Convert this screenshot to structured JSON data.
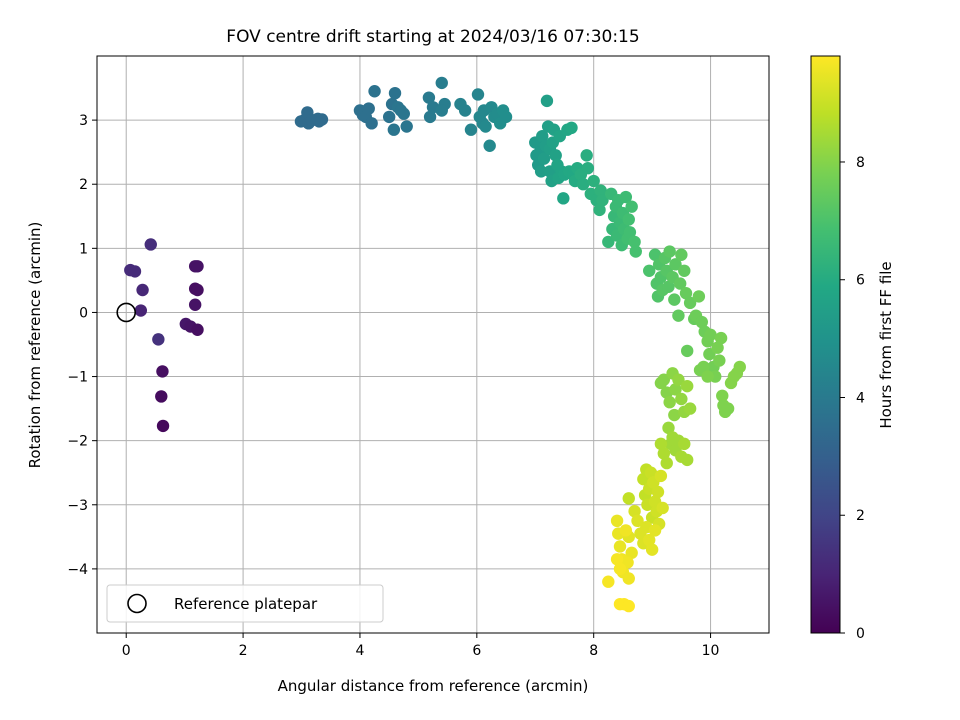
{
  "chart_data": {
    "type": "scatter",
    "title": "FOV centre drift starting at 2024/03/16 07:30:15",
    "xlabel": "Angular distance from reference (arcmin)",
    "ylabel": "Rotation from reference (arcmin)",
    "xlim": [
      -0.5,
      11.0
    ],
    "ylim": [
      -5.0,
      4.0
    ],
    "xticks": [
      0,
      2,
      4,
      6,
      8,
      10
    ],
    "yticks": [
      -4,
      -3,
      -2,
      -1,
      0,
      1,
      2,
      3
    ],
    "grid": true,
    "colorbar": {
      "label": "Hours from first FF file",
      "colormap": "viridis",
      "range": [
        0,
        9.8
      ],
      "ticks": [
        0,
        2,
        4,
        6,
        8
      ]
    },
    "legend": {
      "position": "lower-left",
      "entries": [
        {
          "label": "Reference platepar",
          "marker": "open-circle",
          "color": "#000000"
        }
      ]
    },
    "reference": {
      "x": 0,
      "y": 0
    },
    "points": [
      [
        0.07,
        0.66,
        1.2
      ],
      [
        0.15,
        0.64,
        1.2
      ],
      [
        0.42,
        1.06,
        1.3
      ],
      [
        0.28,
        0.35,
        1.1
      ],
      [
        0.25,
        0.03,
        1.0
      ],
      [
        0.55,
        -0.42,
        1.4
      ],
      [
        0.62,
        -0.92,
        0.4
      ],
      [
        0.6,
        -1.31,
        0.3
      ],
      [
        0.63,
        -1.77,
        0.2
      ],
      [
        1.02,
        -0.18,
        0.6
      ],
      [
        1.1,
        -0.22,
        0.5
      ],
      [
        1.22,
        -0.27,
        0.4
      ],
      [
        1.18,
        0.12,
        0.5
      ],
      [
        1.18,
        0.37,
        0.4
      ],
      [
        1.22,
        0.35,
        0.4
      ],
      [
        1.18,
        0.72,
        0.5
      ],
      [
        1.22,
        0.72,
        0.5
      ],
      [
        2.99,
        2.98,
        3.4
      ],
      [
        3.05,
        3.0,
        3.4
      ],
      [
        3.1,
        3.12,
        3.4
      ],
      [
        3.12,
        2.95,
        3.4
      ],
      [
        3.18,
        3.0,
        3.4
      ],
      [
        3.28,
        3.02,
        3.4
      ],
      [
        3.3,
        2.98,
        3.4
      ],
      [
        3.35,
        3.01,
        3.4
      ],
      [
        4.0,
        3.15,
        3.6
      ],
      [
        4.05,
        3.08,
        3.6
      ],
      [
        4.1,
        3.05,
        3.6
      ],
      [
        4.15,
        3.18,
        3.6
      ],
      [
        4.2,
        2.95,
        3.6
      ],
      [
        4.25,
        3.45,
        3.7
      ],
      [
        4.5,
        3.05,
        3.7
      ],
      [
        4.55,
        3.25,
        3.7
      ],
      [
        4.6,
        3.42,
        3.7
      ],
      [
        4.65,
        3.2,
        3.8
      ],
      [
        4.7,
        3.15,
        3.8
      ],
      [
        4.75,
        3.1,
        3.8
      ],
      [
        4.8,
        2.9,
        3.8
      ],
      [
        4.58,
        2.85,
        3.8
      ],
      [
        5.18,
        3.35,
        4.0
      ],
      [
        5.2,
        3.05,
        4.0
      ],
      [
        5.25,
        3.2,
        4.0
      ],
      [
        5.4,
        3.58,
        4.1
      ],
      [
        5.45,
        3.25,
        4.1
      ],
      [
        5.4,
        3.15,
        4.1
      ],
      [
        5.72,
        3.25,
        4.3
      ],
      [
        5.8,
        3.15,
        4.3
      ],
      [
        5.9,
        2.85,
        4.4
      ],
      [
        6.02,
        3.4,
        4.4
      ],
      [
        6.05,
        3.05,
        4.5
      ],
      [
        6.1,
        2.95,
        4.5
      ],
      [
        6.12,
        3.15,
        4.5
      ],
      [
        6.15,
        2.9,
        4.6
      ],
      [
        6.22,
        2.6,
        4.6
      ],
      [
        6.25,
        3.2,
        4.6
      ],
      [
        6.3,
        3.05,
        4.7
      ],
      [
        6.35,
        3.1,
        4.7
      ],
      [
        6.4,
        2.95,
        4.8
      ],
      [
        6.45,
        3.15,
        4.8
      ],
      [
        6.5,
        3.05,
        4.8
      ],
      [
        7.0,
        2.65,
        5.3
      ],
      [
        7.02,
        2.45,
        5.3
      ],
      [
        7.05,
        2.3,
        5.3
      ],
      [
        7.08,
        2.5,
        5.3
      ],
      [
        7.1,
        2.2,
        5.4
      ],
      [
        7.12,
        2.75,
        5.4
      ],
      [
        7.15,
        2.4,
        5.4
      ],
      [
        7.18,
        2.6,
        5.4
      ],
      [
        7.2,
        3.3,
        5.5
      ],
      [
        7.22,
        2.9,
        5.5
      ],
      [
        7.25,
        2.55,
        5.5
      ],
      [
        7.25,
        2.2,
        5.5
      ],
      [
        7.28,
        2.05,
        5.6
      ],
      [
        7.3,
        2.65,
        5.6
      ],
      [
        7.32,
        2.85,
        5.6
      ],
      [
        7.35,
        2.45,
        5.6
      ],
      [
        7.38,
        2.3,
        5.7
      ],
      [
        7.4,
        2.1,
        5.7
      ],
      [
        7.42,
        2.75,
        5.7
      ],
      [
        7.45,
        2.2,
        5.7
      ],
      [
        7.48,
        1.78,
        5.8
      ],
      [
        7.5,
        2.15,
        5.8
      ],
      [
        7.55,
        2.85,
        5.8
      ],
      [
        7.58,
        2.2,
        5.9
      ],
      [
        7.62,
        2.88,
        5.9
      ],
      [
        7.65,
        2.15,
        5.9
      ],
      [
        7.68,
        2.05,
        6.0
      ],
      [
        7.72,
        2.25,
        6.0
      ],
      [
        7.78,
        2.15,
        6.1
      ],
      [
        7.82,
        2.0,
        6.1
      ],
      [
        7.88,
        2.45,
        6.1
      ],
      [
        7.9,
        2.25,
        6.1
      ],
      [
        7.95,
        1.85,
        6.2
      ],
      [
        8.0,
        2.05,
        6.2
      ],
      [
        8.05,
        1.75,
        6.2
      ],
      [
        8.1,
        1.6,
        6.3
      ],
      [
        8.12,
        1.9,
        6.3
      ],
      [
        8.15,
        1.75,
        6.3
      ],
      [
        8.25,
        1.1,
        6.5
      ],
      [
        8.3,
        1.85,
        6.5
      ],
      [
        8.32,
        1.3,
        6.5
      ],
      [
        8.35,
        1.5,
        6.5
      ],
      [
        8.38,
        1.65,
        6.6
      ],
      [
        8.4,
        1.2,
        6.6
      ],
      [
        8.42,
        1.75,
        6.6
      ],
      [
        8.45,
        1.4,
        6.6
      ],
      [
        8.48,
        1.05,
        6.7
      ],
      [
        8.5,
        1.55,
        6.7
      ],
      [
        8.52,
        1.3,
        6.7
      ],
      [
        8.55,
        1.8,
        6.7
      ],
      [
        8.58,
        1.15,
        6.8
      ],
      [
        8.6,
        1.45,
        6.8
      ],
      [
        8.62,
        1.25,
        6.8
      ],
      [
        8.65,
        1.65,
        6.8
      ],
      [
        8.7,
        1.1,
        6.9
      ],
      [
        8.72,
        0.95,
        6.9
      ],
      [
        8.95,
        0.65,
        7.0
      ],
      [
        9.05,
        0.9,
        7.0
      ],
      [
        9.08,
        0.45,
        7.1
      ],
      [
        9.1,
        0.25,
        7.1
      ],
      [
        9.12,
        0.75,
        7.1
      ],
      [
        9.15,
        0.55,
        7.1
      ],
      [
        9.18,
        0.35,
        7.2
      ],
      [
        9.22,
        0.85,
        7.2
      ],
      [
        9.25,
        0.65,
        7.2
      ],
      [
        9.28,
        0.4,
        7.2
      ],
      [
        9.3,
        0.95,
        7.3
      ],
      [
        9.35,
        0.55,
        7.3
      ],
      [
        9.38,
        0.2,
        7.3
      ],
      [
        9.4,
        0.75,
        7.3
      ],
      [
        9.45,
        -0.05,
        7.4
      ],
      [
        9.48,
        0.45,
        7.4
      ],
      [
        9.5,
        0.9,
        7.4
      ],
      [
        9.55,
        0.65,
        7.4
      ],
      [
        9.58,
        0.3,
        7.5
      ],
      [
        9.6,
        -0.6,
        7.5
      ],
      [
        9.65,
        0.15,
        7.5
      ],
      [
        9.72,
        -0.1,
        7.5
      ],
      [
        9.75,
        -0.05,
        7.6
      ],
      [
        9.8,
        0.25,
        7.6
      ],
      [
        9.85,
        -0.15,
        7.6
      ],
      [
        9.9,
        -0.3,
        7.6
      ],
      [
        9.95,
        -0.45,
        7.7
      ],
      [
        9.98,
        -0.65,
        7.7
      ],
      [
        10.0,
        -0.35,
        7.7
      ],
      [
        10.05,
        -0.85,
        7.7
      ],
      [
        10.08,
        -1.0,
        7.8
      ],
      [
        10.12,
        -0.55,
        7.8
      ],
      [
        10.15,
        -0.75,
        7.8
      ],
      [
        10.18,
        -0.4,
        7.8
      ],
      [
        10.2,
        -1.3,
        7.9
      ],
      [
        10.22,
        -1.45,
        7.9
      ],
      [
        10.25,
        -1.55,
        7.9
      ],
      [
        10.3,
        -1.5,
        7.9
      ],
      [
        10.35,
        -1.1,
        8.0
      ],
      [
        10.4,
        -1.0,
        8.0
      ],
      [
        10.45,
        -0.95,
        8.0
      ],
      [
        10.5,
        -0.85,
        8.0
      ],
      [
        9.82,
        -0.9,
        7.8
      ],
      [
        9.88,
        -0.85,
        7.8
      ],
      [
        9.95,
        -1.0,
        7.9
      ],
      [
        9.15,
        -1.1,
        8.0
      ],
      [
        9.2,
        -1.05,
        8.0
      ],
      [
        9.25,
        -1.25,
        8.0
      ],
      [
        9.3,
        -1.4,
        8.1
      ],
      [
        9.35,
        -0.95,
        8.1
      ],
      [
        9.38,
        -1.6,
        8.1
      ],
      [
        9.4,
        -1.2,
        8.1
      ],
      [
        9.45,
        -1.05,
        8.2
      ],
      [
        9.5,
        -1.35,
        8.2
      ],
      [
        9.55,
        -1.55,
        8.2
      ],
      [
        9.6,
        -1.15,
        8.3
      ],
      [
        9.65,
        -1.5,
        8.3
      ],
      [
        9.28,
        -1.8,
        8.3
      ],
      [
        9.32,
        -2.05,
        8.4
      ],
      [
        9.35,
        -1.95,
        8.4
      ],
      [
        9.4,
        -2.15,
        8.4
      ],
      [
        9.45,
        -2.0,
        8.4
      ],
      [
        9.5,
        -2.25,
        8.5
      ],
      [
        9.55,
        -2.05,
        8.5
      ],
      [
        9.6,
        -2.3,
        8.5
      ],
      [
        9.15,
        -2.05,
        8.6
      ],
      [
        9.2,
        -2.2,
        8.6
      ],
      [
        9.25,
        -2.35,
        8.6
      ],
      [
        8.6,
        -2.9,
        8.9
      ],
      [
        8.85,
        -2.6,
        8.9
      ],
      [
        8.88,
        -2.85,
        8.9
      ],
      [
        8.9,
        -2.45,
        8.9
      ],
      [
        8.92,
        -3.0,
        9.0
      ],
      [
        8.95,
        -2.75,
        9.0
      ],
      [
        8.98,
        -2.5,
        9.0
      ],
      [
        9.0,
        -3.2,
        9.0
      ],
      [
        9.02,
        -2.65,
        9.1
      ],
      [
        9.05,
        -2.95,
        9.1
      ],
      [
        9.08,
        -3.1,
        9.1
      ],
      [
        9.1,
        -2.8,
        9.1
      ],
      [
        9.12,
        -3.3,
        9.2
      ],
      [
        9.15,
        -2.55,
        9.2
      ],
      [
        9.18,
        -3.05,
        9.2
      ],
      [
        8.7,
        -3.1,
        9.2
      ],
      [
        8.75,
        -3.25,
        9.3
      ],
      [
        8.8,
        -3.45,
        9.3
      ],
      [
        8.85,
        -3.6,
        9.3
      ],
      [
        8.9,
        -3.35,
        9.3
      ],
      [
        8.95,
        -3.55,
        9.4
      ],
      [
        9.0,
        -3.7,
        9.4
      ],
      [
        9.05,
        -3.4,
        9.4
      ],
      [
        8.6,
        -3.5,
        9.4
      ],
      [
        8.65,
        -3.75,
        9.5
      ],
      [
        8.4,
        -3.25,
        9.5
      ],
      [
        8.42,
        -3.45,
        9.5
      ],
      [
        8.45,
        -3.65,
        9.5
      ],
      [
        8.48,
        -3.85,
        9.6
      ],
      [
        8.5,
        -4.05,
        9.6
      ],
      [
        8.55,
        -3.4,
        9.6
      ],
      [
        8.58,
        -3.9,
        9.6
      ],
      [
        8.6,
        -4.15,
        9.6
      ],
      [
        8.4,
        -3.85,
        9.7
      ],
      [
        8.45,
        -4.0,
        9.7
      ],
      [
        8.25,
        -4.2,
        9.7
      ],
      [
        8.45,
        -4.55,
        9.8
      ],
      [
        8.52,
        -4.55,
        9.8
      ],
      [
        8.6,
        -4.58,
        9.8
      ]
    ]
  }
}
